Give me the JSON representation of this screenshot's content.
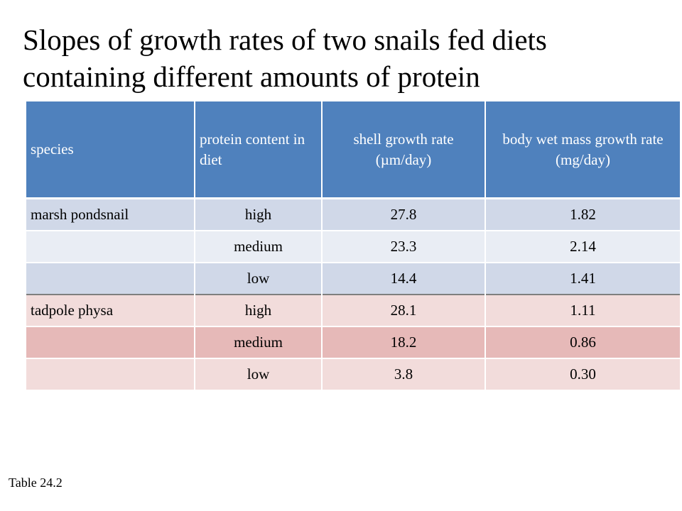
{
  "slide": {
    "title": "Slopes of growth rates of two snails fed diets containing different amounts of protein",
    "caption": "Table 24.2"
  },
  "table": {
    "headers": [
      "species",
      "protein content in diet",
      "shell growth rate (µm/day)",
      "body wet mass growth rate (mg/day)"
    ],
    "rows": [
      [
        "marsh pondsnail",
        "high",
        "27.8",
        "1.82"
      ],
      [
        "",
        "medium",
        "23.3",
        "2.14"
      ],
      [
        "",
        "low",
        "14.4",
        "1.41"
      ],
      [
        "tadpole physa",
        "high",
        "28.1",
        "1.11"
      ],
      [
        "",
        "medium",
        "18.2",
        "0.86"
      ],
      [
        "",
        "low",
        "3.8",
        "0.30"
      ]
    ]
  },
  "colors": {
    "header_bg": "#4f81bd",
    "blue_row_dark": "#d0d8e8",
    "blue_row_light": "#e9edf4",
    "pink_row_light": "#f2dcdb",
    "pink_row_dark": "#e6b9b8"
  }
}
